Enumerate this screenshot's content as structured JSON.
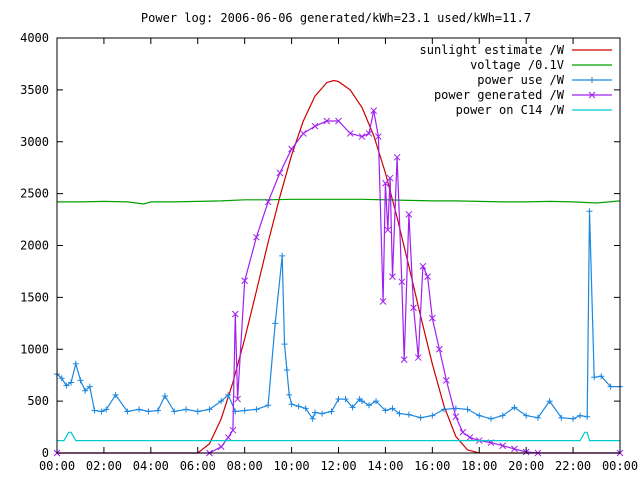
{
  "chart_data": {
    "type": "line",
    "title": "Power log: 2006-06-06 generated/kWh=23.1 used/kWh=11.7",
    "xlabel": "",
    "ylabel": "",
    "xlim": [
      0,
      24
    ],
    "ylim": [
      0,
      4000
    ],
    "grid": false,
    "legend_position": "top-right",
    "x_tick_labels": [
      "00:00",
      "02:00",
      "04:00",
      "06:00",
      "08:00",
      "10:00",
      "12:00",
      "14:00",
      "16:00",
      "18:00",
      "20:00",
      "22:00",
      "00:00"
    ],
    "x_ticks": [
      0,
      2,
      4,
      6,
      8,
      10,
      12,
      14,
      16,
      18,
      20,
      22,
      24
    ],
    "y_ticks": [
      0,
      500,
      1000,
      1500,
      2000,
      2500,
      3000,
      3500,
      4000
    ],
    "y_tick_labels": [
      "0",
      "500",
      "1000",
      "1500",
      "2000",
      "2500",
      "3000",
      "3500",
      "4000"
    ],
    "series": [
      {
        "name": "sunlight estimate /W",
        "color": "#cc0000",
        "marker": "none",
        "x": [
          0,
          6.0,
          6.5,
          7.0,
          7.5,
          8.0,
          8.5,
          9.0,
          9.5,
          10.0,
          10.5,
          11.0,
          11.5,
          11.8,
          12.0,
          12.5,
          13.0,
          13.5,
          14.0,
          14.5,
          15.0,
          15.5,
          16.0,
          16.5,
          17.0,
          17.5,
          18.0,
          24
        ],
        "y": [
          0,
          0,
          90,
          330,
          680,
          1100,
          1560,
          2030,
          2470,
          2870,
          3200,
          3440,
          3570,
          3590,
          3580,
          3500,
          3330,
          3060,
          2700,
          2270,
          1800,
          1320,
          860,
          450,
          160,
          30,
          0,
          0
        ]
      },
      {
        "name": "voltage /0.1V",
        "color": "#00a000",
        "marker": "none",
        "x": [
          0,
          1,
          2,
          3,
          3.7,
          4,
          5,
          6,
          7,
          8,
          9,
          10,
          11,
          12,
          13,
          14,
          15,
          16,
          17,
          18,
          19,
          20,
          21,
          22,
          23,
          24
        ],
        "y": [
          2420,
          2420,
          2425,
          2420,
          2400,
          2420,
          2420,
          2425,
          2430,
          2440,
          2440,
          2445,
          2445,
          2445,
          2445,
          2440,
          2435,
          2430,
          2430,
          2425,
          2420,
          2420,
          2425,
          2420,
          2410,
          2430
        ]
      },
      {
        "name": "power use /W",
        "color": "#1c87e0",
        "marker": "plus",
        "x": [
          0,
          0.2,
          0.4,
          0.6,
          0.8,
          1.0,
          1.2,
          1.4,
          1.6,
          1.9,
          2.1,
          2.5,
          3.0,
          3.5,
          3.9,
          4.3,
          4.6,
          5.0,
          5.5,
          6.0,
          6.5,
          7.0,
          7.3,
          7.6,
          8.0,
          8.5,
          9.0,
          9.3,
          9.6,
          9.7,
          9.8,
          9.9,
          10.0,
          10.3,
          10.6,
          10.9,
          11.0,
          11.3,
          11.7,
          12.0,
          12.3,
          12.6,
          12.9,
          13.0,
          13.3,
          13.6,
          14.0,
          14.3,
          14.6,
          15.0,
          15.5,
          16.0,
          16.5,
          17.0,
          17.5,
          18.0,
          18.5,
          19.0,
          19.5,
          20.0,
          20.5,
          21.0,
          21.5,
          22.0,
          22.3,
          22.6,
          22.7,
          22.9,
          23.2,
          23.6,
          24.0
        ],
        "y": [
          760,
          720,
          650,
          680,
          860,
          700,
          600,
          640,
          410,
          400,
          420,
          560,
          400,
          420,
          400,
          410,
          550,
          400,
          420,
          400,
          420,
          500,
          560,
          400,
          410,
          420,
          460,
          1250,
          1900,
          1050,
          800,
          560,
          470,
          450,
          430,
          330,
          390,
          380,
          400,
          520,
          520,
          440,
          520,
          500,
          460,
          500,
          410,
          430,
          380,
          370,
          340,
          360,
          420,
          430,
          420,
          360,
          330,
          360,
          440,
          360,
          340,
          500,
          340,
          330,
          360,
          350,
          2330,
          730,
          740,
          640,
          640
        ]
      },
      {
        "name": "power generated /W",
        "color": "#a020f0",
        "marker": "cross",
        "x": [
          0,
          6.5,
          7.0,
          7.3,
          7.5,
          7.6,
          7.7,
          8.0,
          8.5,
          9.0,
          9.5,
          10.0,
          10.5,
          11.0,
          11.5,
          12.0,
          12.5,
          13.0,
          13.3,
          13.5,
          13.7,
          13.9,
          14.0,
          14.1,
          14.2,
          14.3,
          14.5,
          14.7,
          14.8,
          15.0,
          15.2,
          15.4,
          15.6,
          15.8,
          16.0,
          16.3,
          16.6,
          17.0,
          17.3,
          17.6,
          18.0,
          18.5,
          19.0,
          19.5,
          20.0,
          20.5,
          24
        ],
        "y": [
          0,
          0,
          60,
          150,
          220,
          1340,
          520,
          1660,
          2080,
          2420,
          2700,
          2930,
          3080,
          3150,
          3200,
          3200,
          3080,
          3050,
          3080,
          3300,
          3050,
          1460,
          2600,
          2150,
          2650,
          1700,
          2850,
          1650,
          900,
          2300,
          1400,
          920,
          1800,
          1700,
          1300,
          1000,
          700,
          350,
          200,
          150,
          120,
          100,
          70,
          40,
          10,
          0,
          0
        ]
      },
      {
        "name": "power on C14 /W",
        "color": "#00cccc",
        "marker": "none",
        "x": [
          0,
          0.3,
          0.5,
          0.6,
          0.8,
          1.0,
          6.0,
          12.0,
          18.0,
          22.3,
          22.5,
          22.6,
          22.7,
          24.0
        ],
        "y": [
          120,
          120,
          200,
          200,
          120,
          120,
          120,
          120,
          120,
          120,
          200,
          200,
          120,
          120
        ]
      }
    ]
  }
}
